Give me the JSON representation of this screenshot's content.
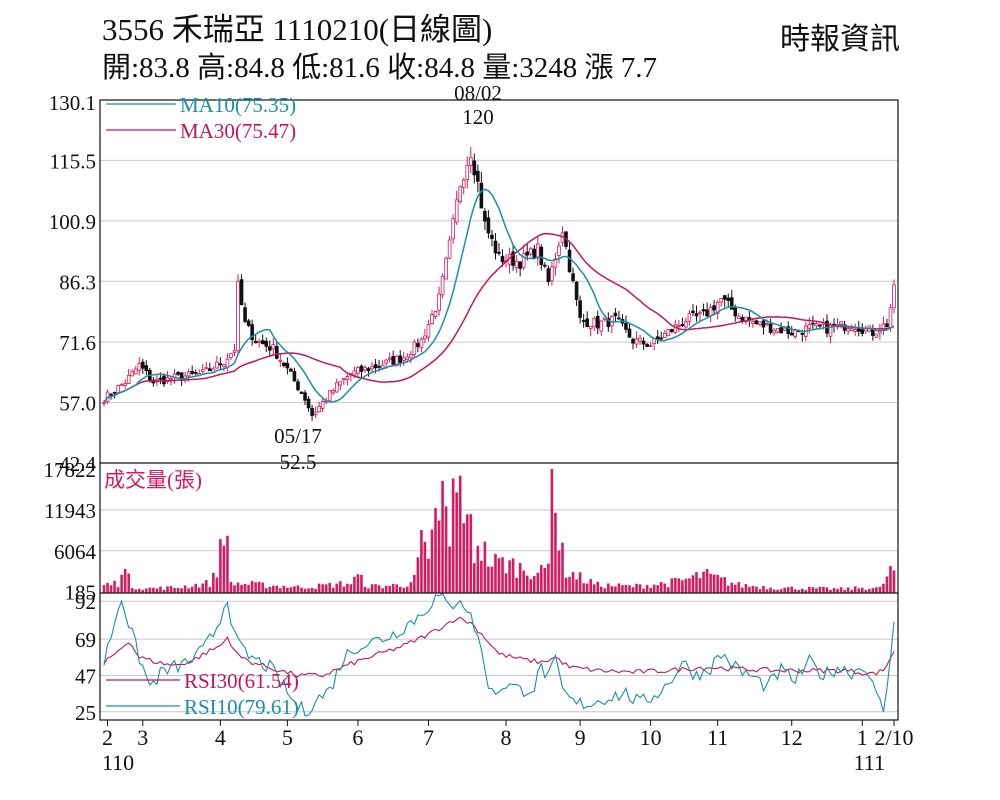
{
  "header": {
    "title": "3556  禾瑞亞 1110210(日線圖)",
    "ohlc": "開:83.8 高:84.8 低:81.6 收:84.8 量:3248 漲 7.7",
    "source": "時報資訊"
  },
  "colors": {
    "up": "#d81b60",
    "down": "#111111",
    "ma10": "#1b8fa8",
    "ma30": "#c2185b",
    "volume": "#d81b60",
    "rsi30": "#c2185b",
    "rsi10": "#1b8fa8",
    "grid": "#c8c8c8"
  },
  "chart_data": [
    {
      "type": "candlestick",
      "ylim": [
        42.4,
        130.1
      ],
      "yticks": [
        "130.1",
        "115.5",
        "100.9",
        "86.3",
        "71.6",
        "57.0",
        "42.4"
      ],
      "ytick_values": [
        130.1,
        115.5,
        100.9,
        86.3,
        71.6,
        57.0,
        42.4
      ],
      "legend": [
        {
          "key": "ma10",
          "label": "MA10(75.35)"
        },
        {
          "key": "ma30",
          "label": "MA30(75.47)"
        }
      ],
      "annotations": {
        "high": {
          "date": "08/02",
          "value": "120"
        },
        "low": {
          "date": "05/17",
          "value": "52.5"
        }
      },
      "anchors_price": [
        [
          0,
          58
        ],
        [
          6,
          62
        ],
        [
          10,
          66
        ],
        [
          14,
          62
        ],
        [
          20,
          63
        ],
        [
          28,
          64
        ],
        [
          34,
          67
        ],
        [
          37,
          70
        ],
        [
          38,
          85
        ],
        [
          40,
          76
        ],
        [
          43,
          72
        ],
        [
          48,
          70
        ],
        [
          52,
          65
        ],
        [
          57,
          58
        ],
        [
          59,
          54
        ],
        [
          62,
          57
        ],
        [
          66,
          61
        ],
        [
          70,
          64
        ],
        [
          78,
          66
        ],
        [
          85,
          68
        ],
        [
          90,
          72
        ],
        [
          95,
          82
        ],
        [
          98,
          95
        ],
        [
          101,
          110
        ],
        [
          104,
          118
        ],
        [
          106,
          110
        ],
        [
          108,
          100
        ],
        [
          112,
          92
        ],
        [
          118,
          91
        ],
        [
          123,
          94
        ],
        [
          126,
          86
        ],
        [
          130,
          99
        ],
        [
          132,
          90
        ],
        [
          135,
          77
        ],
        [
          140,
          76
        ],
        [
          145,
          77
        ],
        [
          150,
          72
        ],
        [
          155,
          71
        ],
        [
          160,
          74
        ],
        [
          165,
          77
        ],
        [
          170,
          78
        ],
        [
          175,
          82
        ],
        [
          180,
          78
        ],
        [
          185,
          76
        ],
        [
          190,
          75
        ],
        [
          195,
          74
        ],
        [
          200,
          75
        ],
        [
          206,
          75
        ],
        [
          212,
          76
        ],
        [
          218,
          74
        ],
        [
          222,
          76
        ],
        [
          224,
          84
        ]
      ],
      "ma10": 75.35,
      "ma30": 75.47
    },
    {
      "type": "bar",
      "title": "成交量(張)",
      "yticks": [
        "17822",
        "11943",
        "6064",
        "185"
      ],
      "ytick_values": [
        17822,
        11943,
        6064,
        185
      ],
      "ylim": [
        0,
        17822
      ],
      "anchors_volume": [
        [
          0,
          1200
        ],
        [
          4,
          1500
        ],
        [
          5,
          4500
        ],
        [
          6,
          3200
        ],
        [
          8,
          1000
        ],
        [
          12,
          700
        ],
        [
          20,
          800
        ],
        [
          30,
          1500
        ],
        [
          32,
          3000
        ],
        [
          33,
          7500
        ],
        [
          34,
          11800
        ],
        [
          35,
          6500
        ],
        [
          36,
          1500
        ],
        [
          45,
          1200
        ],
        [
          55,
          900
        ],
        [
          60,
          1000
        ],
        [
          70,
          1500
        ],
        [
          72,
          2500
        ],
        [
          75,
          1000
        ],
        [
          85,
          1200
        ],
        [
          88,
          2000
        ],
        [
          90,
          7500
        ],
        [
          92,
          4000
        ],
        [
          93,
          8000
        ],
        [
          94,
          15000
        ],
        [
          95,
          9500
        ],
        [
          96,
          14000
        ],
        [
          97,
          11000
        ],
        [
          98,
          7000
        ],
        [
          99,
          15500
        ],
        [
          100,
          13000
        ],
        [
          101,
          16500
        ],
        [
          102,
          14500
        ],
        [
          103,
          9000
        ],
        [
          104,
          10000
        ],
        [
          105,
          6000
        ],
        [
          106,
          8000
        ],
        [
          108,
          6000
        ],
        [
          110,
          4500
        ],
        [
          114,
          4500
        ],
        [
          118,
          3800
        ],
        [
          121,
          3500
        ],
        [
          124,
          3000
        ],
        [
          126,
          4000
        ],
        [
          127,
          17822
        ],
        [
          128,
          13000
        ],
        [
          129,
          8500
        ],
        [
          130,
          5500
        ],
        [
          131,
          3500
        ],
        [
          134,
          2500
        ],
        [
          140,
          1200
        ],
        [
          150,
          1000
        ],
        [
          160,
          1500
        ],
        [
          165,
          2000
        ],
        [
          170,
          2800
        ],
        [
          175,
          2000
        ],
        [
          180,
          1200
        ],
        [
          190,
          800
        ],
        [
          200,
          700
        ],
        [
          210,
          600
        ],
        [
          215,
          800
        ],
        [
          220,
          700
        ],
        [
          223,
          3248
        ]
      ]
    },
    {
      "type": "line",
      "yticks": [
        "92",
        "69",
        "47",
        "25"
      ],
      "ytick_values": [
        92,
        69,
        47,
        25
      ],
      "ylim": [
        20,
        97
      ],
      "series": [
        {
          "name": "RSI30(61.54)",
          "key": "rsi30",
          "anchors": [
            [
              0,
              54
            ],
            [
              4,
              62
            ],
            [
              7,
              68
            ],
            [
              10,
              58
            ],
            [
              15,
              55
            ],
            [
              20,
              53
            ],
            [
              25,
              56
            ],
            [
              30,
              62
            ],
            [
              33,
              65
            ],
            [
              35,
              70
            ],
            [
              38,
              59
            ],
            [
              42,
              55
            ],
            [
              48,
              51
            ],
            [
              55,
              47
            ],
            [
              62,
              47
            ],
            [
              70,
              54
            ],
            [
              78,
              60
            ],
            [
              85,
              65
            ],
            [
              92,
              72
            ],
            [
              97,
              78
            ],
            [
              100,
              82
            ],
            [
              104,
              79
            ],
            [
              108,
              70
            ],
            [
              112,
              60
            ],
            [
              118,
              57
            ],
            [
              124,
              55
            ],
            [
              128,
              58
            ],
            [
              132,
              52
            ],
            [
              140,
              50
            ],
            [
              150,
              49
            ],
            [
              160,
              50
            ],
            [
              170,
              52
            ],
            [
              180,
              51
            ],
            [
              190,
              50
            ],
            [
              200,
              50
            ],
            [
              210,
              50
            ],
            [
              218,
              48
            ],
            [
              221,
              50
            ],
            [
              224,
              61.54
            ]
          ]
        },
        {
          "name": "RSI10(79.61)",
          "key": "rsi10",
          "anchors": [
            [
              0,
              55
            ],
            [
              3,
              80
            ],
            [
              5,
              95
            ],
            [
              7,
              78
            ],
            [
              10,
              58
            ],
            [
              13,
              40
            ],
            [
              16,
              48
            ],
            [
              20,
              52
            ],
            [
              24,
              55
            ],
            [
              28,
              62
            ],
            [
              31,
              72
            ],
            [
              33,
              82
            ],
            [
              35,
              95
            ],
            [
              37,
              70
            ],
            [
              40,
              60
            ],
            [
              44,
              55
            ],
            [
              47,
              52
            ],
            [
              51,
              40
            ],
            [
              54,
              30
            ],
            [
              57,
              25
            ],
            [
              60,
              32
            ],
            [
              64,
              38
            ],
            [
              68,
              58
            ],
            [
              72,
              65
            ],
            [
              77,
              68
            ],
            [
              82,
              72
            ],
            [
              86,
              78
            ],
            [
              90,
              84
            ],
            [
              93,
              92
            ],
            [
              95,
              95
            ],
            [
              98,
              88
            ],
            [
              101,
              95
            ],
            [
              104,
              82
            ],
            [
              106,
              72
            ],
            [
              108,
              50
            ],
            [
              110,
              36
            ],
            [
              114,
              42
            ],
            [
              118,
              38
            ],
            [
              122,
              40
            ],
            [
              124,
              52
            ],
            [
              126,
              46
            ],
            [
              128,
              55
            ],
            [
              130,
              38
            ],
            [
              133,
              30
            ],
            [
              138,
              30
            ],
            [
              143,
              34
            ],
            [
              148,
              36
            ],
            [
              152,
              30
            ],
            [
              156,
              35
            ],
            [
              160,
              42
            ],
            [
              164,
              55
            ],
            [
              168,
              47
            ],
            [
              172,
              52
            ],
            [
              175,
              60
            ],
            [
              180,
              50
            ],
            [
              184,
              46
            ],
            [
              188,
              40
            ],
            [
              192,
              50
            ],
            [
              196,
              44
            ],
            [
              200,
              55
            ],
            [
              204,
              47
            ],
            [
              208,
              52
            ],
            [
              212,
              49
            ],
            [
              216,
              53
            ],
            [
              219,
              34
            ],
            [
              221,
              26
            ],
            [
              223,
              55
            ],
            [
              224,
              79.61
            ]
          ]
        }
      ]
    }
  ],
  "xaxis": {
    "labels": [
      {
        "text": "2",
        "i": 1
      },
      {
        "text": "3",
        "i": 11
      },
      {
        "text": "4",
        "i": 33
      },
      {
        "text": "5",
        "i": 52
      },
      {
        "text": "6",
        "i": 72
      },
      {
        "text": "7",
        "i": 92
      },
      {
        "text": "8",
        "i": 114
      },
      {
        "text": "9",
        "i": 135
      },
      {
        "text": "10",
        "i": 155
      },
      {
        "text": "11",
        "i": 174
      },
      {
        "text": "12",
        "i": 195
      },
      {
        "text": "1",
        "i": 215
      },
      {
        "text": "2/10",
        "i": 224
      }
    ],
    "years": [
      {
        "text": "110",
        "i": 4
      },
      {
        "text": "111",
        "i": 217
      }
    ]
  }
}
